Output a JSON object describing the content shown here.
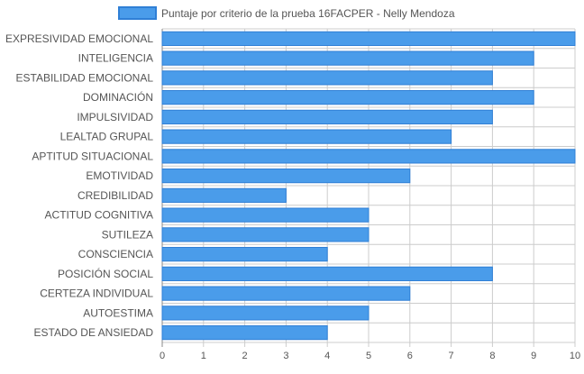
{
  "chart_data": {
    "type": "bar",
    "orientation": "horizontal",
    "legend_label": "Puntaje por criterio de la prueba 16FACPER - Nelly Mendoza",
    "legend_position": "top",
    "categories": [
      "EXPRESIVIDAD EMOCIONAL",
      "INTELIGENCIA",
      "ESTABILIDAD EMOCIONAL",
      "DOMINACIÓN",
      "IMPULSIVIDAD",
      "LEALTAD GRUPAL",
      "APTITUD SITUACIONAL",
      "EMOTIVIDAD",
      "CREDIBILIDAD",
      "ACTITUD COGNITIVA",
      "SUTILEZA",
      "CONSCIENCIA",
      "POSICIÓN SOCIAL",
      "CERTEZA INDIVIDUAL",
      "AUTOESTIMA",
      "ESTADO DE ANSIEDAD"
    ],
    "values": [
      10,
      9,
      8,
      9,
      8,
      7,
      10,
      6,
      3,
      5,
      5,
      4,
      8,
      6,
      5,
      4
    ],
    "xlim": [
      0,
      10
    ],
    "x_ticks": [
      "0",
      "1",
      "2",
      "3",
      "4",
      "5",
      "6",
      "7",
      "8",
      "9",
      "10"
    ],
    "grid": true,
    "colors": {
      "bar_fill": "#4a9cea",
      "bar_stroke": "#2f7fd6",
      "grid": "#cccccc",
      "axis": "#888888",
      "text": "#555555"
    }
  }
}
